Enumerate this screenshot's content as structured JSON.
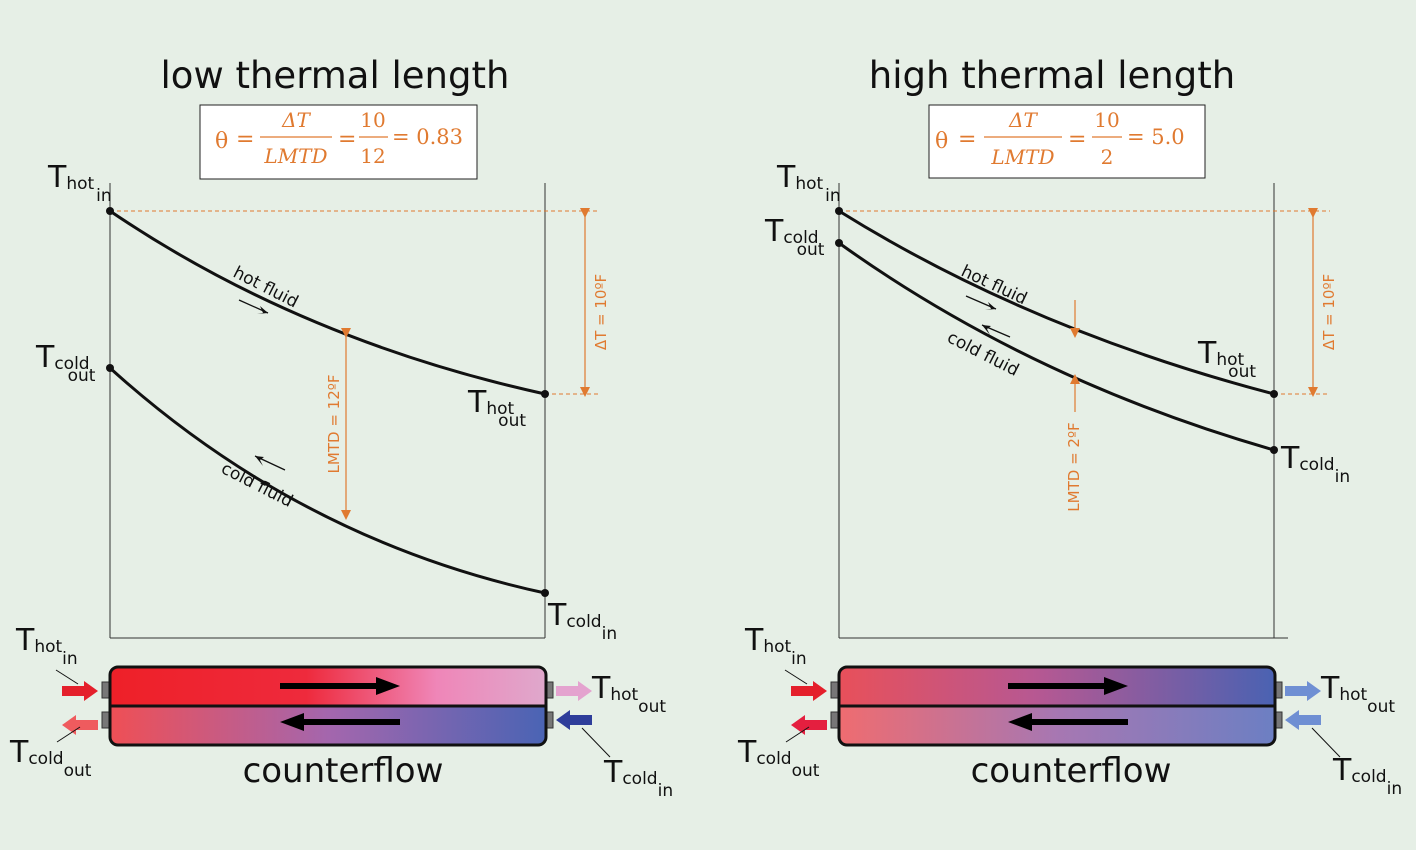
{
  "panels": [
    {
      "title": "low thermal length",
      "equation": {
        "theta": "θ",
        "eq": "=",
        "num1": "ΔT",
        "den1": "LMTD",
        "num2": "10",
        "den2": "12",
        "result": "= 0.83"
      },
      "labels": {
        "hot_in": {
          "main": "T",
          "sub1": "hot",
          "sub2": "in"
        },
        "cold_out": {
          "main": "T",
          "sub1": "cold",
          "sub2": "out"
        },
        "hot_out": {
          "main": "T",
          "sub1": "hot",
          "sub2": "out"
        },
        "cold_in": {
          "main": "T",
          "sub1": "cold",
          "sub2": "in"
        }
      },
      "hot_fluid_label": "hot fluid",
      "cold_fluid_label": "cold fluid",
      "delta_t_label": "ΔT = 10ºF",
      "lmtd_label": "LMTD = 12ºF",
      "exchanger_label": "counterflow",
      "colors": {
        "hot_start": "#ee2028",
        "hot_mid": "#ee2028",
        "hot_end": "#e0a7c9",
        "cold_start": "#ef5b5e",
        "cold_mid": "#9a6ab0",
        "cold_end": "#4a64b4",
        "arrow_hot_out": "#e4a3cf",
        "arrow_cold_in": "#2e3d9a",
        "arrow_cold_out": "#ef5b5e",
        "arrow_hot_in": "#e41f2b"
      }
    },
    {
      "title": "high thermal length",
      "equation": {
        "theta": "θ",
        "eq": "=",
        "num1": "ΔT",
        "den1": "LMTD",
        "num2": "10",
        "den2": "2",
        "result": "= 5.0"
      },
      "labels": {
        "hot_in": {
          "main": "T",
          "sub1": "hot",
          "sub2": "in"
        },
        "cold_out": {
          "main": "T",
          "sub1": "cold",
          "sub2": "out"
        },
        "hot_out": {
          "main": "T",
          "sub1": "hot",
          "sub2": "out"
        },
        "cold_in": {
          "main": "T",
          "sub1": "cold",
          "sub2": "in"
        }
      },
      "hot_fluid_label": "hot fluid",
      "cold_fluid_label": "cold fluid",
      "delta_t_label": "ΔT = 10ºF",
      "lmtd_label": "LMTD = 2ºF",
      "exchanger_label": "counterflow",
      "colors": {
        "hot_start": "#e5555e",
        "hot_mid": "#b05a9a",
        "hot_end": "#4a64b4",
        "cold_start": "#ee6f72",
        "cold_mid": "#a174b2",
        "cold_end": "#6a7fc2",
        "arrow_hot_out": "#6f8fd3",
        "arrow_cold_in": "#6f8fd3",
        "arrow_cold_out": "#e41f3f",
        "arrow_hot_in": "#e41f2b"
      }
    }
  ]
}
